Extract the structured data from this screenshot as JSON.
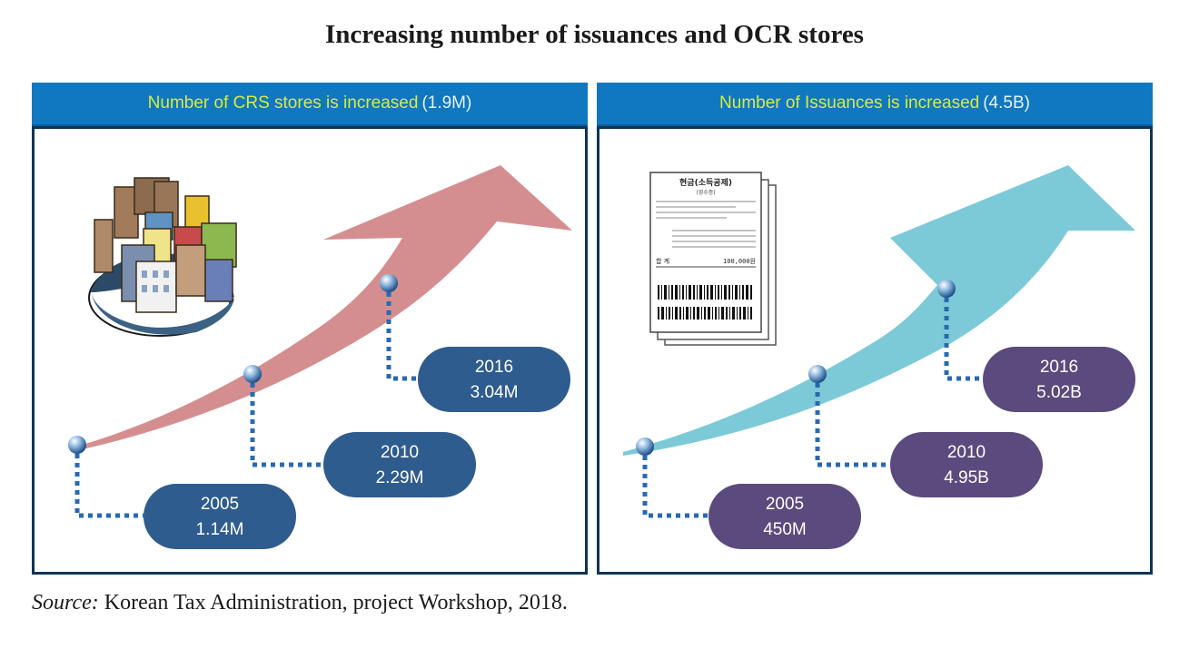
{
  "title": "Increasing number of issuances and OCR stores",
  "left_panel": {
    "header_accent": "Number of CRS stores is increased",
    "header_total": "(1.9M)",
    "milestones": [
      {
        "year": "2005",
        "value": "1.14M"
      },
      {
        "year": "2010",
        "value": "2.29M"
      },
      {
        "year": "2016",
        "value": "3.04M"
      }
    ]
  },
  "right_panel": {
    "header_accent": "Number of Issuances is increased",
    "header_total": "(4.5B)",
    "receipt": {
      "line1": "현금(소득공제)",
      "line2": "(영수증)",
      "total_label": "합 계",
      "total_value": "100,000원"
    },
    "milestones": [
      {
        "year": "2005",
        "value": "450M"
      },
      {
        "year": "2010",
        "value": "4.95B"
      },
      {
        "year": "2016",
        "value": "5.02B"
      }
    ]
  },
  "source": {
    "label": "Source:",
    "text": "Korean Tax Administration, project Workshop, 2018."
  },
  "colors": {
    "header_bg": "#0f78c0",
    "header_accent": "#d9ec3b",
    "left_arrow": "#d58e8f",
    "right_arrow": "#7ccad8",
    "left_pill": "#2e5c8e",
    "right_pill": "#5b4a7d",
    "connector": "#2869b0"
  }
}
